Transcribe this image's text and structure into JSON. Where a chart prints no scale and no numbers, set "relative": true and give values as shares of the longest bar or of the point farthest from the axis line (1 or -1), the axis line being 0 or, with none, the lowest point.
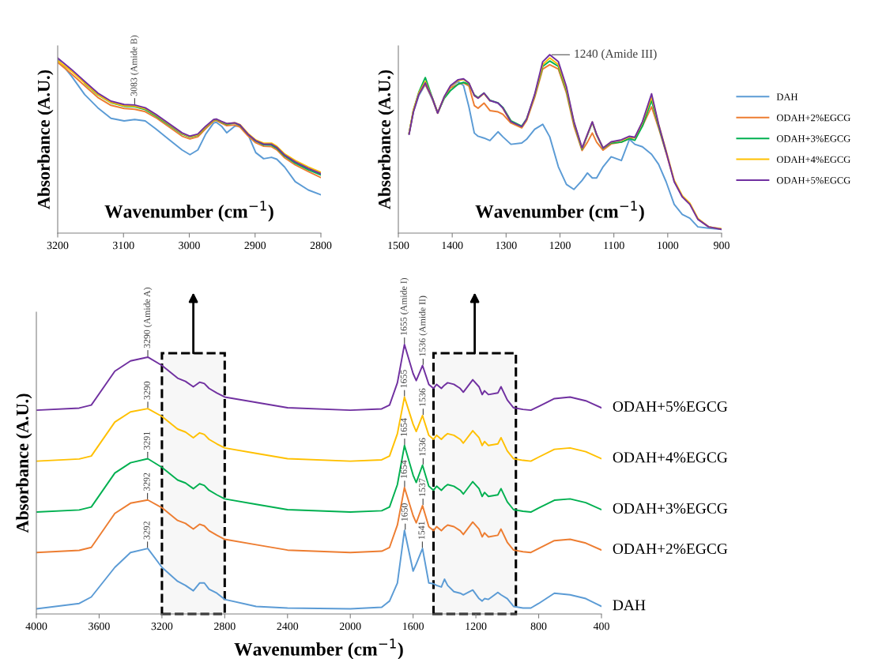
{
  "chart_data": [
    {
      "type": "line",
      "relative": true,
      "xlabel": "Wavenumber (cm$^{−1}$)",
      "ylabel": "Absorbance (A.U.)",
      "xlim": [
        3200,
        2800
      ],
      "xticks": [
        3200,
        3100,
        3000,
        2900,
        2800
      ],
      "x": [
        3200,
        3179,
        3159,
        3139,
        3119,
        3099,
        3083,
        3067,
        3051,
        3031,
        3011,
        2999,
        2987,
        2975,
        2963,
        2959,
        2951,
        2943,
        2931,
        2923,
        2911,
        2899,
        2887,
        2875,
        2867,
        2855,
        2839,
        2819,
        2800
      ],
      "series": [
        {
          "color": "#5b9bd5",
          "values": [
            0.995,
            0.897,
            0.792,
            0.716,
            0.656,
            0.641,
            0.649,
            0.641,
            0.596,
            0.535,
            0.475,
            0.448,
            0.475,
            0.566,
            0.629,
            0.633,
            0.611,
            0.573,
            0.611,
            0.614,
            0.566,
            0.46,
            0.425,
            0.433,
            0.422,
            0.377,
            0.294,
            0.246,
            0.219
          ]
        },
        {
          "color": "#ed7d31",
          "values": [
            0.975,
            0.91,
            0.842,
            0.775,
            0.73,
            0.712,
            0.708,
            0.694,
            0.66,
            0.607,
            0.554,
            0.538,
            0.55,
            0.597,
            0.64,
            0.644,
            0.628,
            0.614,
            0.618,
            0.606,
            0.556,
            0.516,
            0.496,
            0.494,
            0.476,
            0.43,
            0.39,
            0.352,
            0.317
          ]
        },
        {
          "color": "#00b050",
          "values": [
            null,
            null,
            0.856,
            0.79,
            0.745,
            0.725,
            0.722,
            0.706,
            0.67,
            0.618,
            0.566,
            0.548,
            0.56,
            0.605,
            0.645,
            0.648,
            0.634,
            0.622,
            0.628,
            0.616,
            0.566,
            0.526,
            0.504,
            0.503,
            0.485,
            0.44,
            0.4,
            0.362,
            0.332
          ]
        },
        {
          "color": "#ffc000",
          "values": [
            0.985,
            0.925,
            0.858,
            0.792,
            0.747,
            0.728,
            0.726,
            0.711,
            0.675,
            0.622,
            0.569,
            0.55,
            0.562,
            0.607,
            0.646,
            0.65,
            0.636,
            0.625,
            0.63,
            0.62,
            0.57,
            0.532,
            0.514,
            0.514,
            0.496,
            0.452,
            0.415,
            0.378,
            0.347
          ]
        },
        {
          "color": "#7030a0",
          "values": [
            1.0,
            0.935,
            0.867,
            0.8,
            0.754,
            0.735,
            0.732,
            0.716,
            0.679,
            0.626,
            0.573,
            0.554,
            0.566,
            0.611,
            0.649,
            0.652,
            0.638,
            0.626,
            0.63,
            0.618,
            0.566,
            0.528,
            0.508,
            0.508,
            0.49,
            0.445,
            0.407,
            0.37,
            0.339
          ]
        }
      ],
      "annotations": [
        {
          "text": "3083 (Amide B)",
          "x": 3083,
          "y": 0.732
        }
      ]
    },
    {
      "type": "line",
      "relative": true,
      "xlabel": "Wavenumber (cm$^{−1}$)",
      "ylabel": "Absorbance (A.U.)",
      "xlim": [
        1500,
        900
      ],
      "xticks": [
        1500,
        1400,
        1300,
        1200,
        1100,
        1000,
        900
      ],
      "legend": "right",
      "x": [
        1480,
        1472,
        1462,
        1450,
        1437,
        1427,
        1415,
        1403,
        1389,
        1379,
        1369,
        1359,
        1352,
        1341,
        1330,
        1315,
        1306,
        1291,
        1271,
        1262,
        1247,
        1232,
        1219,
        1203,
        1188,
        1174,
        1159,
        1149,
        1140,
        1132,
        1120,
        1105,
        1086,
        1071,
        1061,
        1047,
        1030,
        1017,
        1003,
        988,
        973,
        959,
        944,
        924,
        900
      ],
      "series": [
        {
          "name": "DAH",
          "color": "#5b9bd5",
          "values": [
            0.561,
            0.68,
            0.771,
            0.834,
            0.75,
            0.673,
            0.757,
            0.823,
            0.849,
            0.827,
            0.708,
            0.561,
            0.543,
            0.533,
            0.519,
            0.568,
            0.54,
            0.498,
            0.505,
            0.526,
            0.582,
            0.61,
            0.54,
            0.372,
            0.273,
            0.245,
            0.295,
            0.337,
            0.309,
            0.309,
            0.372,
            0.428,
            0.407,
            0.526,
            0.498,
            0.484,
            0.442,
            0.386,
            0.288,
            0.161,
            0.105,
            0.084,
            0.035,
            0.028,
            0.021
          ]
        },
        {
          "name": "ODAH+2%EGCG",
          "color": "#ed7d31",
          "values": [
            0.56,
            0.685,
            0.78,
            0.835,
            0.755,
            0.672,
            0.76,
            0.815,
            0.835,
            0.842,
            0.825,
            0.715,
            0.7,
            0.729,
            0.687,
            0.68,
            0.666,
            0.617,
            0.59,
            0.63,
            0.76,
            0.92,
            0.944,
            0.92,
            0.785,
            0.6,
            0.463,
            0.51,
            0.561,
            0.51,
            0.465,
            0.5,
            0.51,
            0.53,
            0.535,
            0.6,
            0.708,
            0.59,
            0.45,
            0.292,
            0.205,
            0.165,
            0.08,
            0.035,
            0.022
          ]
        },
        {
          "name": "ODAH+3%EGCG",
          "color": "#00b050",
          "values": [
            0.56,
            0.69,
            0.79,
            0.872,
            0.76,
            0.675,
            0.755,
            0.8,
            0.835,
            0.845,
            0.835,
            0.775,
            0.76,
            0.785,
            0.745,
            0.73,
            0.705,
            0.63,
            0.6,
            0.64,
            0.77,
            0.935,
            0.965,
            0.935,
            0.8,
            0.615,
            0.47,
            0.55,
            0.62,
            0.55,
            0.475,
            0.505,
            0.51,
            0.53,
            0.52,
            0.6,
            0.743,
            0.6,
            0.455,
            null,
            null,
            null,
            null,
            null,
            null
          ]
        },
        {
          "name": "ODAH+4%EGCG",
          "color": "#ffc000",
          "values": [
            0.56,
            0.69,
            0.785,
            0.85,
            0.757,
            0.675,
            0.762,
            0.825,
            0.855,
            0.862,
            0.84,
            0.77,
            0.757,
            0.782,
            0.742,
            null,
            0.7,
            0.622,
            0.594,
            0.636,
            0.772,
            0.945,
            0.982,
            0.945,
            0.81,
            0.62,
            0.474,
            0.552,
            0.622,
            0.552,
            0.477,
            0.51,
            0.52,
            0.54,
            0.535,
            0.62,
            0.764,
            0.61,
            0.462,
            0.296,
            0.21,
            0.168,
            0.082,
            0.035,
            0.025
          ]
        },
        {
          "name": "ODAH+5%EGCG",
          "color": "#7030a0",
          "values": [
            0.554,
            0.68,
            0.778,
            0.842,
            0.757,
            0.673,
            0.764,
            0.827,
            0.86,
            0.865,
            0.842,
            0.771,
            0.757,
            0.785,
            0.743,
            0.729,
            0.701,
            0.624,
            0.596,
            0.638,
            0.778,
            0.961,
            1.0,
            0.961,
            0.82,
            0.624,
            0.477,
            0.554,
            0.624,
            0.554,
            0.477,
            0.512,
            0.523,
            0.543,
            0.537,
            0.624,
            0.781,
            0.61,
            0.456,
            0.288,
            0.203,
            0.161,
            0.077,
            0.035,
            0.021
          ]
        }
      ],
      "annotations": [
        {
          "text": "1240 (Amide III)",
          "x": 1219,
          "y": 1.0
        }
      ]
    },
    {
      "type": "line",
      "relative": true,
      "xlabel": "Wavenumber (cm$^{−1}$)",
      "ylabel": "Absorbance (A.U.)",
      "xlim": [
        4000,
        400
      ],
      "xticks": [
        4000,
        3600,
        3200,
        2800,
        2400,
        2000,
        1600,
        1200,
        800,
        400
      ],
      "x": [
        4000,
        3727,
        3650,
        3500,
        3400,
        3290,
        3200,
        3100,
        3050,
        3000,
        2960,
        2930,
        2900,
        2850,
        2800,
        2600,
        2400,
        2000,
        1800,
        1750,
        1700,
        1655,
        1600,
        1580,
        1540,
        1500,
        1470,
        1450,
        1420,
        1400,
        1380,
        1340,
        1300,
        1280,
        1220,
        1180,
        1160,
        1145,
        1120,
        1060,
        1040,
        1000,
        960,
        900,
        850,
        800,
        700,
        600,
        500,
        400
      ],
      "series": [
        {
          "name": "DAH",
          "color": "#5b9bd5",
          "values": [
            0.019,
            0.039,
            0.063,
            0.173,
            0.228,
            0.243,
            0.173,
            0.121,
            0.106,
            0.086,
            0.115,
            0.115,
            0.092,
            0.077,
            0.054,
            0.028,
            0.022,
            0.019,
            0.025,
            0.048,
            0.115,
            0.31,
            0.159,
            0.185,
            0.243,
            0.115,
            0.112,
            0.106,
            0.1,
            0.129,
            0.106,
            0.083,
            0.077,
            0.071,
            0.089,
            0.057,
            0.048,
            0.057,
            0.054,
            0.08,
            0.071,
            0.057,
            0.028,
            0.022,
            0.022,
            0.039,
            0.077,
            0.071,
            0.057,
            0.028
          ]
        },
        {
          "name": "ODAH+2%EGCG",
          "color": "#ed7d31",
          "values": [
            0.228,
            0.236,
            0.247,
            0.373,
            0.411,
            0.423,
            0.394,
            0.347,
            0.336,
            0.315,
            0.333,
            0.327,
            0.309,
            0.292,
            0.277,
            0.257,
            0.237,
            0.228,
            0.233,
            0.247,
            0.33,
            0.469,
            0.365,
            0.338,
            0.402,
            0.324,
            0.309,
            0.324,
            0.309,
            0.321,
            0.33,
            0.324,
            0.309,
            0.295,
            0.341,
            0.315,
            0.286,
            0.301,
            0.286,
            0.292,
            0.315,
            0.266,
            0.237,
            0.231,
            0.228,
            0.243,
            0.272,
            0.277,
            0.263,
            0.237
          ]
        },
        {
          "name": "ODAH+3%EGCG",
          "color": "#00b050",
          "values": [
            0.378,
            0.386,
            0.397,
            0.523,
            0.561,
            0.576,
            0.544,
            0.497,
            0.486,
            0.465,
            0.483,
            0.477,
            0.459,
            0.442,
            0.427,
            0.407,
            0.387,
            0.378,
            0.383,
            0.397,
            0.48,
            0.625,
            0.515,
            0.488,
            0.552,
            0.474,
            0.459,
            0.474,
            0.459,
            0.471,
            0.48,
            0.474,
            0.459,
            0.445,
            0.491,
            0.465,
            0.436,
            0.451,
            0.436,
            0.442,
            0.465,
            0.416,
            0.387,
            0.381,
            0.378,
            0.393,
            0.422,
            0.427,
            0.413,
            0.387
          ]
        },
        {
          "name": "ODAH+4%EGCG",
          "color": "#ffc000",
          "values": [
            0.567,
            0.575,
            0.586,
            0.712,
            0.75,
            0.762,
            0.733,
            0.686,
            0.675,
            0.654,
            0.672,
            0.666,
            0.648,
            0.631,
            0.616,
            0.596,
            0.576,
            0.567,
            0.572,
            0.586,
            0.669,
            0.805,
            0.704,
            0.677,
            0.736,
            0.663,
            0.648,
            0.663,
            0.648,
            0.66,
            0.669,
            0.663,
            0.648,
            0.634,
            0.68,
            0.654,
            0.625,
            0.64,
            0.625,
            0.631,
            0.654,
            0.605,
            0.576,
            0.57,
            0.567,
            0.582,
            0.611,
            0.616,
            0.602,
            0.576
          ]
        },
        {
          "name": "ODAH+5%EGCG",
          "color": "#7030a0",
          "values": [
            0.756,
            0.764,
            0.775,
            0.901,
            0.939,
            0.953,
            0.922,
            0.875,
            0.863,
            0.843,
            0.86,
            0.855,
            0.837,
            0.82,
            0.805,
            0.785,
            0.765,
            0.756,
            0.761,
            0.775,
            0.858,
            1.0,
            0.892,
            0.866,
            0.922,
            0.852,
            0.837,
            0.852,
            0.837,
            0.849,
            0.858,
            0.852,
            0.837,
            0.823,
            0.869,
            0.843,
            0.814,
            0.828,
            0.814,
            0.82,
            0.843,
            0.794,
            0.765,
            0.759,
            0.756,
            0.77,
            0.799,
            0.805,
            0.791,
            0.765
          ]
        }
      ],
      "annotations": [
        {
          "text": "3290 (Amide A)",
          "x": 3290,
          "y": 0.953
        },
        {
          "text": "1655 (Amide I)",
          "x": 1655,
          "y": 1.0
        },
        {
          "text": "1536 (Amide II)",
          "x": 1536,
          "y": 0.922
        },
        {
          "text": "3290",
          "x": 3290,
          "y": 0.762
        },
        {
          "text": "1655",
          "x": 1655,
          "y": 0.805
        },
        {
          "text": "1536",
          "x": 1536,
          "y": 0.736
        },
        {
          "text": "3291",
          "x": 3291,
          "y": 0.576
        },
        {
          "text": "1654",
          "x": 1654,
          "y": 0.625
        },
        {
          "text": "1536",
          "x": 1536,
          "y": 0.552
        },
        {
          "text": "3292",
          "x": 3292,
          "y": 0.423
        },
        {
          "text": "1654",
          "x": 1654,
          "y": 0.469
        },
        {
          "text": "1537",
          "x": 1537,
          "y": 0.402
        },
        {
          "text": "3292",
          "x": 3292,
          "y": 0.243
        },
        {
          "text": "1650",
          "x": 1650,
          "y": 0.31
        },
        {
          "text": "1541",
          "x": 1541,
          "y": 0.243
        }
      ],
      "bands": [
        {
          "axis": "x",
          "from": 3200,
          "to": 2800,
          "color": "#000000"
        },
        {
          "axis": "x",
          "from": 1470,
          "to": 945,
          "color": "#000000"
        }
      ]
    }
  ]
}
